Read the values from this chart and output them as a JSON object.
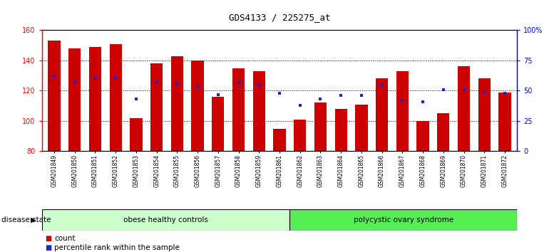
{
  "title": "GDS4133 / 225275_at",
  "samples": [
    "GSM201849",
    "GSM201850",
    "GSM201851",
    "GSM201852",
    "GSM201853",
    "GSM201854",
    "GSM201855",
    "GSM201856",
    "GSM201857",
    "GSM201858",
    "GSM201859",
    "GSM201861",
    "GSM201862",
    "GSM201863",
    "GSM201864",
    "GSM201865",
    "GSM201866",
    "GSM201867",
    "GSM201868",
    "GSM201869",
    "GSM201870",
    "GSM201871",
    "GSM201872"
  ],
  "counts": [
    153,
    148,
    149,
    151,
    102,
    138,
    143,
    140,
    116,
    135,
    133,
    95,
    101,
    112,
    108,
    111,
    128,
    133,
    100,
    105,
    136,
    128,
    119
  ],
  "percentiles": [
    62,
    57,
    60,
    60,
    43,
    57,
    56,
    54,
    47,
    57,
    55,
    48,
    38,
    43,
    46,
    46,
    55,
    42,
    41,
    51,
    51,
    49,
    48
  ],
  "y_min": 80,
  "y_max": 160,
  "bar_color": "#CC0000",
  "dot_color": "#2222CC",
  "group1_label": "obese healthy controls",
  "group1_count": 12,
  "group2_label": "polycystic ovary syndrome",
  "group2_count": 11,
  "group1_color": "#CCFFCC",
  "group2_color": "#55EE55",
  "disease_label": "disease state",
  "legend_count_label": "count",
  "legend_pct_label": "percentile rank within the sample",
  "bg_color": "#FFFFFF"
}
